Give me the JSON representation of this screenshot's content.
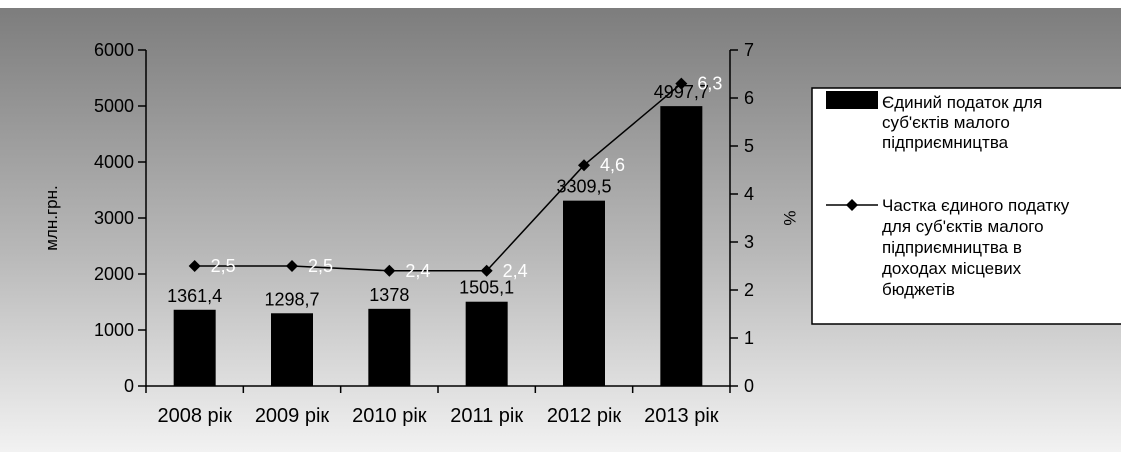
{
  "chart_data": {
    "type": "bar",
    "categories": [
      "2008 рік",
      "2009 рік",
      "2010 рік",
      "2011 рік",
      "2012 рік",
      "2013 рік"
    ],
    "series": [
      {
        "name": "Єдиний податок для суб'єктів малого підприємництва",
        "type": "bar",
        "axis": "left",
        "values": [
          1361.4,
          1298.7,
          1378,
          1505.1,
          3309.5,
          4997.7
        ],
        "labels": [
          "1361,4",
          "1298,7",
          "1378",
          "1505,1",
          "3309,5",
          "4997,7"
        ],
        "color": "#000000"
      },
      {
        "name": "Частка єдиного податку для суб'єктів малого підприємництва в доходах місцевих бюджетів",
        "type": "line",
        "axis": "right",
        "values": [
          2.5,
          2.5,
          2.4,
          2.4,
          4.6,
          6.3
        ],
        "labels": [
          "2,5",
          "2,5",
          "2,4",
          "2,4",
          "4,6",
          "6,3"
        ],
        "color": "#000000"
      }
    ],
    "ylabel": "млн.грн.",
    "y2label": "%",
    "ylim": [
      0,
      6000
    ],
    "y2lim": [
      0,
      7
    ],
    "yticks": [
      "0",
      "1000",
      "2000",
      "3000",
      "4000",
      "5000",
      "6000"
    ],
    "y2ticks": [
      "0",
      "1",
      "2",
      "3",
      "4",
      "5",
      "6",
      "7"
    ],
    "legend": {
      "placement": "right",
      "items": [
        {
          "lines": [
            "Єдиний податок для",
            "суб'єктів малого",
            "підприємництва"
          ]
        },
        {
          "lines": [
            "Частка єдиного податку",
            "для суб'єктів малого",
            "підприємництва в",
            "доходах місцевих",
            "бюджетів"
          ]
        }
      ]
    },
    "grid": false
  }
}
